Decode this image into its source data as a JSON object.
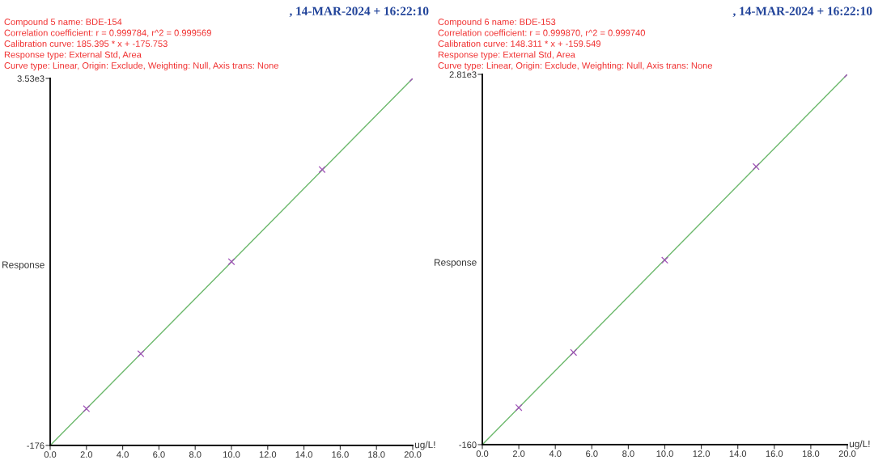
{
  "chart_data": [
    {
      "type": "scatter",
      "title": ", 14-MAR-2024 + 16:22:10",
      "annotations": [
        "Compound 5 name: BDE-154",
        "Correlation coefficient: r = 0.999784, r^2 = 0.999569",
        "Calibration curve: 185.395 * x + -175.753",
        "Response type: External Std, Area",
        "Curve type: Linear, Origin: Exclude, Weighting: Null, Axis trans: None"
      ],
      "xlabel": "ug/L!",
      "ylabel": "Response",
      "series": [
        {
          "type": "line",
          "color": "#6cb86c",
          "x": [
            0,
            20
          ],
          "values": [
            -176,
            3530
          ],
          "marker": "none",
          "line_style": "solid"
        },
        {
          "color": "#a050b8",
          "x": [
            2,
            5,
            10,
            15,
            20
          ],
          "values": [
            195,
            750,
            1680,
            2610,
            3530
          ],
          "marker": "cross"
        }
      ],
      "xlim": [
        0,
        20
      ],
      "xticks": [
        {
          "value": 0,
          "label": "0.0"
        },
        {
          "value": 2,
          "label": "2.0"
        },
        {
          "value": 4,
          "label": "4.0"
        },
        {
          "value": 6,
          "label": "6.0"
        },
        {
          "value": 8,
          "label": "8.0"
        },
        {
          "value": 10,
          "label": "10.0"
        },
        {
          "value": 12,
          "label": "12.0"
        },
        {
          "value": 14,
          "label": "14.0"
        },
        {
          "value": 16,
          "label": "16.0"
        },
        {
          "value": 18,
          "label": "18.0"
        },
        {
          "value": 20,
          "label": "20.0"
        }
      ],
      "ylim": [
        -176,
        3530
      ],
      "yticks": [
        -176,
        {
          "value": 3530,
          "label": "3.53e3"
        }
      ],
      "grid": false
    },
    {
      "type": "scatter",
      "title": ", 14-MAR-2024 + 16:22:10",
      "annotations": [
        "Compound 6 name: BDE-153",
        "Correlation coefficient: r = 0.999870, r^2 = 0.999740",
        "Calibration curve: 148.311 * x + -159.549",
        "Response type: External Std, Area",
        "Curve type: Linear, Origin: Exclude, Weighting: Null, Axis trans: None"
      ],
      "xlabel": "ug/L!",
      "ylabel": "Response",
      "series": [
        {
          "type": "line",
          "color": "#6cb86c",
          "x": [
            0,
            20
          ],
          "values": [
            -160,
            2810
          ],
          "marker": "none",
          "line_style": "solid"
        },
        {
          "color": "#a050b8",
          "x": [
            2,
            5,
            10,
            15,
            20
          ],
          "values": [
            137,
            580,
            1320,
            2070,
            2810
          ],
          "marker": "cross"
        }
      ],
      "xlim": [
        0,
        20
      ],
      "xticks": [
        {
          "value": 0,
          "label": "0.0"
        },
        {
          "value": 2,
          "label": "2.0"
        },
        {
          "value": 4,
          "label": "4.0"
        },
        {
          "value": 6,
          "label": "6.0"
        },
        {
          "value": 8,
          "label": "8.0"
        },
        {
          "value": 10,
          "label": "10.0"
        },
        {
          "value": 12,
          "label": "12.0"
        },
        {
          "value": 14,
          "label": "14.0"
        },
        {
          "value": 16,
          "label": "16.0"
        },
        {
          "value": 18,
          "label": "18.0"
        },
        {
          "value": 20,
          "label": "20.0"
        }
      ],
      "ylim": [
        -160,
        2810
      ],
      "yticks": [
        -160,
        {
          "value": 2810,
          "label": "2.81e3"
        }
      ],
      "grid": false
    }
  ]
}
